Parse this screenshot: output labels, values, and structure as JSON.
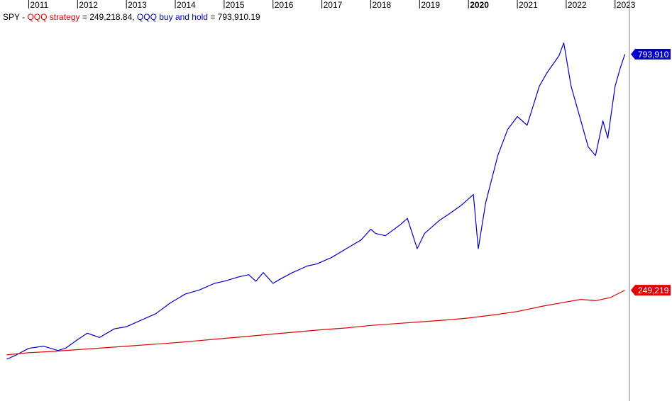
{
  "legend": {
    "symbol": "SPY",
    "sep": " - ",
    "strategy_label": "QQQ strategy",
    "strategy_eq": " = ",
    "strategy_value": "249,218.84",
    "comma": ", ",
    "buyhold_label": "QQQ buy and hold",
    "buyhold_eq": " = ",
    "buyhold_value": "793,910.19"
  },
  "colors": {
    "strategy": "#e00000",
    "buyhold": "#0000cc",
    "tag_strategy": "#e00000",
    "tag_buyhold": "#0000cc",
    "axis": "#808080"
  },
  "chart_data": {
    "type": "line",
    "title": "",
    "x_labels": [
      {
        "year": 2011,
        "label": "2011",
        "bold": false
      },
      {
        "year": 2012,
        "label": "2012",
        "bold": false
      },
      {
        "year": 2013,
        "label": "2013",
        "bold": false
      },
      {
        "year": 2014,
        "label": "2014",
        "bold": false
      },
      {
        "year": 2015,
        "label": "2015",
        "bold": false
      },
      {
        "year": 2016,
        "label": "2016",
        "bold": false
      },
      {
        "year": 2017,
        "label": "2017",
        "bold": false
      },
      {
        "year": 2018,
        "label": "2018",
        "bold": false
      },
      {
        "year": 2019,
        "label": "2019",
        "bold": false
      },
      {
        "year": 2020,
        "label": "2020",
        "bold": true
      },
      {
        "year": 2021,
        "label": "2021",
        "bold": false
      },
      {
        "year": 2022,
        "label": "2022",
        "bold": false
      },
      {
        "year": 2023,
        "label": "2023",
        "bold": false
      }
    ],
    "x_range": [
      2010.5,
      2023.25
    ],
    "ylim": [
      0,
      870000
    ],
    "series": [
      {
        "name": "QQQ buy and hold",
        "color": "#0000cc",
        "last_value_tag": "793,910",
        "x": [
          2010.55,
          2010.75,
          2011.0,
          2011.3,
          2011.6,
          2011.75,
          2012.0,
          2012.2,
          2012.45,
          2012.75,
          2013.0,
          2013.3,
          2013.6,
          2013.9,
          2014.2,
          2014.5,
          2014.8,
          2015.0,
          2015.3,
          2015.5,
          2015.65,
          2015.8,
          2016.0,
          2016.15,
          2016.4,
          2016.7,
          2016.9,
          2017.2,
          2017.5,
          2017.8,
          2018.0,
          2018.1,
          2018.3,
          2018.6,
          2018.75,
          2018.95,
          2019.1,
          2019.4,
          2019.6,
          2019.85,
          2020.0,
          2020.1,
          2020.2,
          2020.35,
          2020.6,
          2020.8,
          2021.0,
          2021.2,
          2021.45,
          2021.6,
          2021.85,
          2021.95,
          2022.1,
          2022.3,
          2022.45,
          2022.6,
          2022.75,
          2022.85,
          2023.0,
          2023.1,
          2023.2
        ],
        "y": [
          90000,
          100000,
          115000,
          120000,
          110000,
          115000,
          135000,
          150000,
          140000,
          160000,
          165000,
          180000,
          195000,
          220000,
          240000,
          250000,
          265000,
          270000,
          280000,
          285000,
          270000,
          290000,
          265000,
          275000,
          290000,
          305000,
          310000,
          325000,
          345000,
          365000,
          390000,
          380000,
          375000,
          400000,
          415000,
          345000,
          380000,
          410000,
          425000,
          445000,
          460000,
          470000,
          345000,
          450000,
          560000,
          620000,
          650000,
          630000,
          720000,
          750000,
          790000,
          820000,
          720000,
          640000,
          580000,
          560000,
          640000,
          600000,
          720000,
          760000,
          793910
        ]
      },
      {
        "name": "QQQ strategy",
        "color": "#e00000",
        "last_value_tag": "249,219",
        "x": [
          2010.55,
          2011.0,
          2011.5,
          2012.0,
          2012.5,
          2013.0,
          2013.5,
          2014.0,
          2014.5,
          2015.0,
          2015.5,
          2016.0,
          2016.5,
          2017.0,
          2017.5,
          2018.0,
          2018.5,
          2019.0,
          2019.5,
          2020.0,
          2020.5,
          2021.0,
          2021.5,
          2022.0,
          2022.3,
          2022.6,
          2022.9,
          2023.2
        ],
        "y": [
          100000,
          105000,
          108000,
          112000,
          116000,
          120000,
          124000,
          128000,
          133000,
          138000,
          143000,
          148000,
          153000,
          158000,
          162000,
          168000,
          172000,
          176000,
          180000,
          185000,
          192000,
          200000,
          212000,
          222000,
          228000,
          225000,
          232000,
          249219
        ]
      }
    ]
  }
}
